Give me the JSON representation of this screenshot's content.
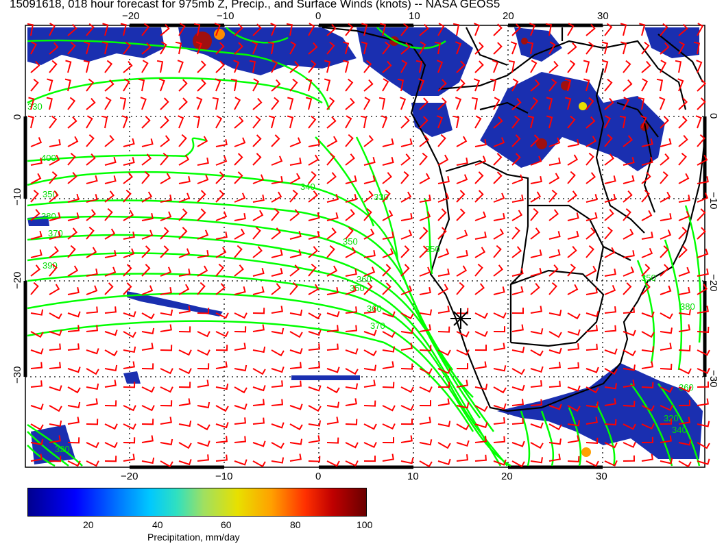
{
  "title": "15091618, 018 hour forecast for 975mb Z, Precip., and Surface Winds (knots) -- NASA GEOS5",
  "map": {
    "lon_labels": [
      "−20",
      "−10",
      "0",
      "10",
      "20",
      "30"
    ],
    "lat_labels": [
      "0",
      "−10",
      "−20",
      "−30"
    ],
    "contour_labels": [
      "330",
      "400",
      "350",
      "340",
      "330",
      "350",
      "370",
      "380",
      "390",
      "350",
      "360",
      "350",
      "360",
      "370",
      "350",
      "320",
      "340",
      "320",
      "360",
      "380"
    ],
    "marker": "+"
  },
  "colorbar": {
    "ticks": [
      "20",
      "40",
      "60",
      "80",
      "100"
    ],
    "label": "Precipitation, mm/day",
    "colors": [
      "#00008f",
      "#0000ff",
      "#00c8ff",
      "#e8e000",
      "#ff3000",
      "#6a0000"
    ]
  },
  "colors": {
    "contour": "#00ff00",
    "barb": "#ff0000",
    "coast": "#000000"
  }
}
